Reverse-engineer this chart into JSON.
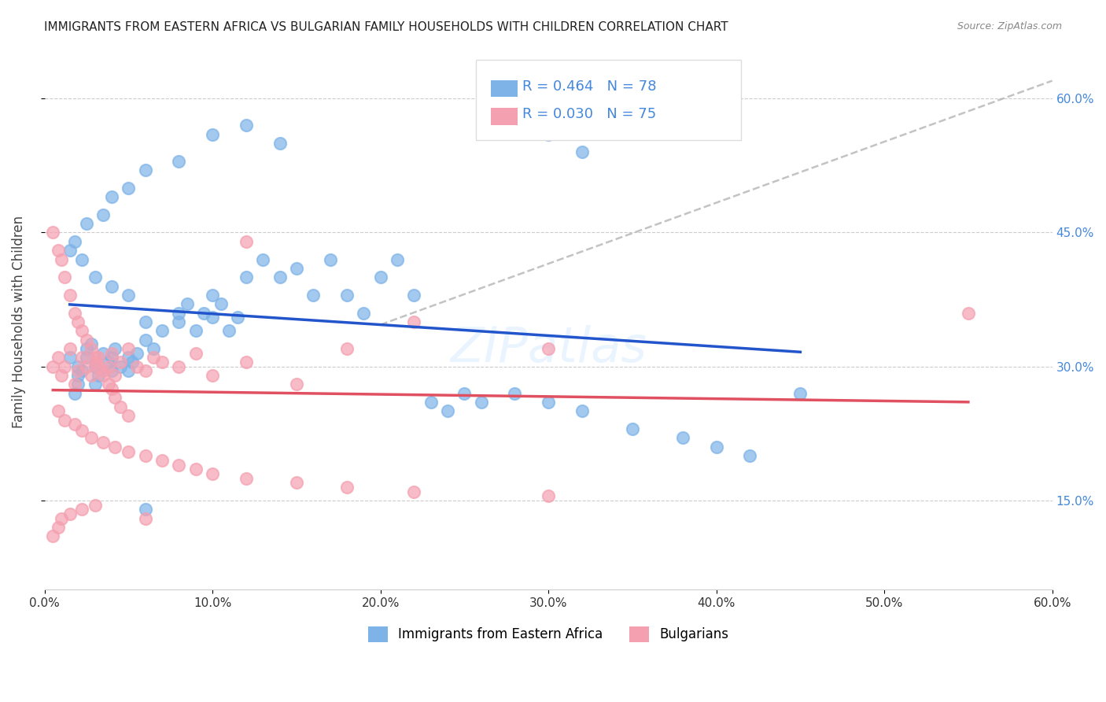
{
  "title": "IMMIGRANTS FROM EASTERN AFRICA VS BULGARIAN FAMILY HOUSEHOLDS WITH CHILDREN CORRELATION CHART",
  "source": "Source: ZipAtlas.com",
  "xlabel": "",
  "ylabel": "Family Households with Children",
  "legend_label_1": "Immigrants from Eastern Africa",
  "legend_label_2": "Bulgarians",
  "R1": "0.464",
  "N1": "78",
  "R2": "0.030",
  "N2": "75",
  "color1": "#7EB3E8",
  "color2": "#F4A0B0",
  "trend1_color": "#2255CC",
  "trend2_color": "#E05060",
  "dashed_color": "#AAAAAA",
  "xlim": [
    0,
    0.6
  ],
  "ylim": [
    0.05,
    0.65
  ],
  "yticks": [
    0.15,
    0.3,
    0.45,
    0.6
  ],
  "xticks": [
    0.0,
    0.1,
    0.2,
    0.3,
    0.4,
    0.5,
    0.6
  ],
  "scatter1_x": [
    0.02,
    0.02,
    0.025,
    0.015,
    0.02,
    0.018,
    0.022,
    0.025,
    0.03,
    0.03,
    0.028,
    0.032,
    0.035,
    0.04,
    0.04,
    0.038,
    0.042,
    0.045,
    0.05,
    0.05,
    0.052,
    0.055,
    0.06,
    0.06,
    0.065,
    0.07,
    0.08,
    0.08,
    0.085,
    0.09,
    0.095,
    0.1,
    0.1,
    0.105,
    0.11,
    0.115,
    0.12,
    0.13,
    0.14,
    0.15,
    0.16,
    0.17,
    0.18,
    0.19,
    0.2,
    0.21,
    0.22,
    0.23,
    0.24,
    0.25,
    0.26,
    0.28,
    0.3,
    0.32,
    0.35,
    0.38,
    0.4,
    0.42,
    0.45,
    0.28,
    0.3,
    0.32,
    0.14,
    0.12,
    0.1,
    0.08,
    0.06,
    0.05,
    0.04,
    0.035,
    0.025,
    0.018,
    0.015,
    0.022,
    0.03,
    0.04,
    0.05,
    0.06
  ],
  "scatter1_y": [
    0.3,
    0.28,
    0.32,
    0.31,
    0.29,
    0.27,
    0.295,
    0.31,
    0.3,
    0.28,
    0.325,
    0.29,
    0.315,
    0.31,
    0.295,
    0.305,
    0.32,
    0.3,
    0.31,
    0.295,
    0.305,
    0.315,
    0.35,
    0.33,
    0.32,
    0.34,
    0.36,
    0.35,
    0.37,
    0.34,
    0.36,
    0.38,
    0.355,
    0.37,
    0.34,
    0.355,
    0.4,
    0.42,
    0.4,
    0.41,
    0.38,
    0.42,
    0.38,
    0.36,
    0.4,
    0.42,
    0.38,
    0.26,
    0.25,
    0.27,
    0.26,
    0.27,
    0.26,
    0.25,
    0.23,
    0.22,
    0.21,
    0.2,
    0.27,
    0.57,
    0.56,
    0.54,
    0.55,
    0.57,
    0.56,
    0.53,
    0.52,
    0.5,
    0.49,
    0.47,
    0.46,
    0.44,
    0.43,
    0.42,
    0.4,
    0.39,
    0.38,
    0.14
  ],
  "scatter2_x": [
    0.005,
    0.008,
    0.01,
    0.012,
    0.015,
    0.018,
    0.02,
    0.022,
    0.025,
    0.028,
    0.03,
    0.032,
    0.035,
    0.038,
    0.04,
    0.042,
    0.045,
    0.05,
    0.055,
    0.06,
    0.065,
    0.07,
    0.08,
    0.09,
    0.1,
    0.12,
    0.15,
    0.18,
    0.22,
    0.3,
    0.55,
    0.005,
    0.008,
    0.01,
    0.012,
    0.015,
    0.018,
    0.02,
    0.022,
    0.025,
    0.028,
    0.03,
    0.032,
    0.035,
    0.038,
    0.04,
    0.042,
    0.045,
    0.05,
    0.008,
    0.012,
    0.018,
    0.022,
    0.028,
    0.035,
    0.042,
    0.05,
    0.06,
    0.07,
    0.08,
    0.09,
    0.1,
    0.12,
    0.15,
    0.18,
    0.22,
    0.3,
    0.12,
    0.06,
    0.03,
    0.022,
    0.015,
    0.01,
    0.008,
    0.005
  ],
  "scatter2_y": [
    0.3,
    0.31,
    0.29,
    0.3,
    0.32,
    0.28,
    0.295,
    0.31,
    0.3,
    0.29,
    0.305,
    0.31,
    0.295,
    0.3,
    0.315,
    0.29,
    0.305,
    0.32,
    0.3,
    0.295,
    0.31,
    0.305,
    0.3,
    0.315,
    0.29,
    0.305,
    0.28,
    0.32,
    0.35,
    0.32,
    0.36,
    0.45,
    0.43,
    0.42,
    0.4,
    0.38,
    0.36,
    0.35,
    0.34,
    0.33,
    0.32,
    0.31,
    0.3,
    0.29,
    0.28,
    0.275,
    0.265,
    0.255,
    0.245,
    0.25,
    0.24,
    0.235,
    0.228,
    0.22,
    0.215,
    0.21,
    0.205,
    0.2,
    0.195,
    0.19,
    0.185,
    0.18,
    0.175,
    0.17,
    0.165,
    0.16,
    0.155,
    0.44,
    0.13,
    0.145,
    0.14,
    0.135,
    0.13,
    0.12,
    0.11
  ]
}
